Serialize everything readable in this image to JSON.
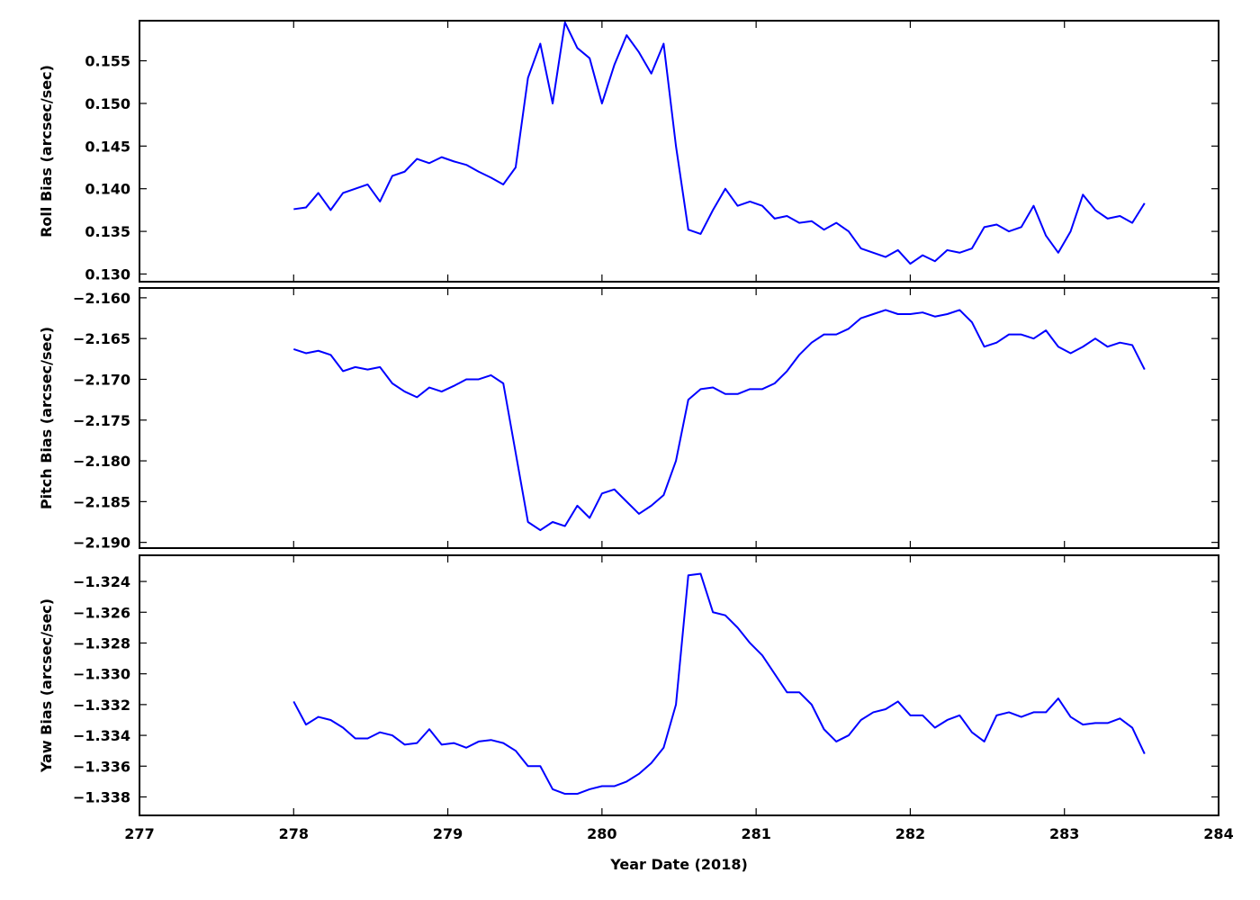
{
  "chart_data": [
    {
      "type": "line",
      "ylabel": "Roll Bias (arcsec/sec)",
      "color": "#0000ff",
      "xlim": [
        277,
        284
      ],
      "xticks": [
        277,
        278,
        279,
        280,
        281,
        282,
        283,
        284
      ],
      "ylim": [
        0.1291,
        0.1597
      ],
      "yticks": [
        {
          "value": 0.13,
          "label": "0.130"
        },
        0.135,
        {
          "value": 0.14,
          "label": "0.140"
        },
        0.145,
        {
          "value": 0.15,
          "label": "0.150"
        },
        0.155
      ],
      "x": [
        278.0,
        278.08,
        278.16,
        278.24,
        278.32,
        278.4,
        278.48,
        278.56,
        278.64,
        278.72,
        278.8,
        278.88,
        278.96,
        279.04,
        279.12,
        279.2,
        279.28,
        279.36,
        279.44,
        279.52,
        279.6,
        279.68,
        279.76,
        279.84,
        279.92,
        280.0,
        280.08,
        280.16,
        280.24,
        280.32,
        280.4,
        280.48,
        280.56,
        280.64,
        280.72,
        280.8,
        280.88,
        280.96,
        281.04,
        281.12,
        281.2,
        281.28,
        281.36,
        281.44,
        281.52,
        281.6,
        281.68,
        281.76,
        281.84,
        281.92,
        282.0,
        282.08,
        282.16,
        282.24,
        282.32,
        282.4,
        282.48,
        282.56,
        282.64,
        282.72,
        282.8,
        282.88,
        282.96,
        283.04,
        283.12,
        283.2,
        283.28,
        283.36,
        283.44,
        283.52
      ],
      "values": [
        0.1376,
        0.1378,
        0.1395,
        0.1375,
        0.1395,
        0.14,
        0.1405,
        0.1385,
        0.1415,
        0.142,
        0.1435,
        0.143,
        0.1437,
        0.1432,
        0.1428,
        0.142,
        0.1413,
        0.1405,
        0.1425,
        0.153,
        0.157,
        0.15,
        0.1595,
        0.1565,
        0.1553,
        0.15,
        0.1545,
        0.158,
        0.156,
        0.1535,
        0.157,
        0.145,
        0.1352,
        0.1347,
        0.1375,
        0.14,
        0.138,
        0.1385,
        0.138,
        0.1365,
        0.1368,
        0.136,
        0.1362,
        0.1352,
        0.136,
        0.135,
        0.133,
        0.1325,
        0.132,
        0.1328,
        0.1312,
        0.1322,
        0.1315,
        0.1328,
        0.1325,
        0.133,
        0.1355,
        0.1358,
        0.135,
        0.1355,
        0.138,
        0.1345,
        0.1325,
        0.135,
        0.1393,
        0.1375,
        0.1365,
        0.1368,
        0.136,
        0.1383
      ]
    },
    {
      "type": "line",
      "ylabel": "Pitch Bias (arcsec/sec)",
      "color": "#0000ff",
      "xlim": [
        277,
        284
      ],
      "xticks": [
        277,
        278,
        279,
        280,
        281,
        282,
        283,
        284
      ],
      "ylim": [
        -2.1907,
        -2.1588
      ],
      "yticks": [
        {
          "value": -2.19,
          "label": "−2.190"
        },
        {
          "value": -2.185,
          "label": "−2.185"
        },
        {
          "value": -2.18,
          "label": "−2.180"
        },
        {
          "value": -2.175,
          "label": "−2.175"
        },
        {
          "value": -2.17,
          "label": "−2.170"
        },
        {
          "value": -2.165,
          "label": "−2.165"
        },
        {
          "value": -2.16,
          "label": "−2.160"
        }
      ],
      "x": [
        278.0,
        278.08,
        278.16,
        278.24,
        278.32,
        278.4,
        278.48,
        278.56,
        278.64,
        278.72,
        278.8,
        278.88,
        278.96,
        279.04,
        279.12,
        279.2,
        279.28,
        279.36,
        279.44,
        279.52,
        279.6,
        279.68,
        279.76,
        279.84,
        279.92,
        280.0,
        280.08,
        280.16,
        280.24,
        280.32,
        280.4,
        280.48,
        280.56,
        280.64,
        280.72,
        280.8,
        280.88,
        280.96,
        281.04,
        281.12,
        281.2,
        281.28,
        281.36,
        281.44,
        281.52,
        281.6,
        281.68,
        281.76,
        281.84,
        281.92,
        282.0,
        282.08,
        282.16,
        282.24,
        282.32,
        282.4,
        282.48,
        282.56,
        282.64,
        282.72,
        282.8,
        282.88,
        282.96,
        283.04,
        283.12,
        283.2,
        283.28,
        283.36,
        283.44,
        283.52
      ],
      "values": [
        -2.1663,
        -2.1668,
        -2.1665,
        -2.167,
        -2.169,
        -2.1685,
        -2.1688,
        -2.1685,
        -2.1705,
        -2.1715,
        -2.1722,
        -2.171,
        -2.1715,
        -2.1708,
        -2.17,
        -2.17,
        -2.1695,
        -2.1705,
        -2.179,
        -2.1875,
        -2.1885,
        -2.1875,
        -2.188,
        -2.1855,
        -2.187,
        -2.184,
        -2.1835,
        -2.185,
        -2.1865,
        -2.1855,
        -2.1842,
        -2.18,
        -2.1725,
        -2.1712,
        -2.171,
        -2.1718,
        -2.1718,
        -2.1712,
        -2.1712,
        -2.1705,
        -2.169,
        -2.167,
        -2.1655,
        -2.1645,
        -2.1645,
        -2.1638,
        -2.1625,
        -2.162,
        -2.1615,
        -2.162,
        -2.162,
        -2.1618,
        -2.1623,
        -2.162,
        -2.1615,
        -2.163,
        -2.166,
        -2.1655,
        -2.1645,
        -2.1645,
        -2.165,
        -2.164,
        -2.166,
        -2.1668,
        -2.166,
        -2.165,
        -2.166,
        -2.1655,
        -2.1658,
        -2.1688
      ]
    },
    {
      "type": "line",
      "ylabel": "Yaw Bias (arcsec/sec)",
      "xlabel": "Year Date (2018)",
      "color": "#0000ff",
      "xlim": [
        277,
        284
      ],
      "xticks": [
        277,
        278,
        279,
        280,
        281,
        282,
        283,
        284
      ],
      "ylim": [
        -1.3392,
        -1.3223
      ],
      "yticks": [
        {
          "value": -1.338,
          "label": "−1.338"
        },
        {
          "value": -1.336,
          "label": "−1.336"
        },
        {
          "value": -1.334,
          "label": "−1.334"
        },
        {
          "value": -1.332,
          "label": "−1.332"
        },
        {
          "value": -1.33,
          "label": "−1.330"
        },
        {
          "value": -1.328,
          "label": "−1.328"
        },
        {
          "value": -1.326,
          "label": "−1.326"
        },
        {
          "value": -1.324,
          "label": "−1.324"
        }
      ],
      "x": [
        278.0,
        278.08,
        278.16,
        278.24,
        278.32,
        278.4,
        278.48,
        278.56,
        278.64,
        278.72,
        278.8,
        278.88,
        278.96,
        279.04,
        279.12,
        279.2,
        279.28,
        279.36,
        279.44,
        279.52,
        279.6,
        279.68,
        279.76,
        279.84,
        279.92,
        280.0,
        280.08,
        280.16,
        280.24,
        280.32,
        280.4,
        280.48,
        280.56,
        280.64,
        280.72,
        280.8,
        280.88,
        280.96,
        281.04,
        281.12,
        281.2,
        281.28,
        281.36,
        281.44,
        281.52,
        281.6,
        281.68,
        281.76,
        281.84,
        281.92,
        282.0,
        282.08,
        282.16,
        282.24,
        282.32,
        282.4,
        282.48,
        282.56,
        282.64,
        282.72,
        282.8,
        282.88,
        282.96,
        283.04,
        283.12,
        283.2,
        283.28,
        283.36,
        283.44,
        283.52
      ],
      "values": [
        -1.3318,
        -1.3333,
        -1.3328,
        -1.333,
        -1.3335,
        -1.3342,
        -1.3342,
        -1.3338,
        -1.334,
        -1.3346,
        -1.3345,
        -1.3336,
        -1.3346,
        -1.3345,
        -1.3348,
        -1.3344,
        -1.3343,
        -1.3345,
        -1.335,
        -1.336,
        -1.336,
        -1.3375,
        -1.3378,
        -1.3378,
        -1.3375,
        -1.3373,
        -1.3373,
        -1.337,
        -1.3365,
        -1.3358,
        -1.3348,
        -1.332,
        -1.3236,
        -1.3235,
        -1.326,
        -1.3262,
        -1.327,
        -1.328,
        -1.3288,
        -1.33,
        -1.3312,
        -1.3312,
        -1.332,
        -1.3336,
        -1.3344,
        -1.334,
        -1.333,
        -1.3325,
        -1.3323,
        -1.3318,
        -1.3327,
        -1.3327,
        -1.3335,
        -1.333,
        -1.3327,
        -1.3338,
        -1.3344,
        -1.3327,
        -1.3325,
        -1.3328,
        -1.3325,
        -1.3325,
        -1.3316,
        -1.3328,
        -1.3333,
        -1.3332,
        -1.3332,
        -1.3329,
        -1.3335,
        -1.3352
      ]
    }
  ]
}
